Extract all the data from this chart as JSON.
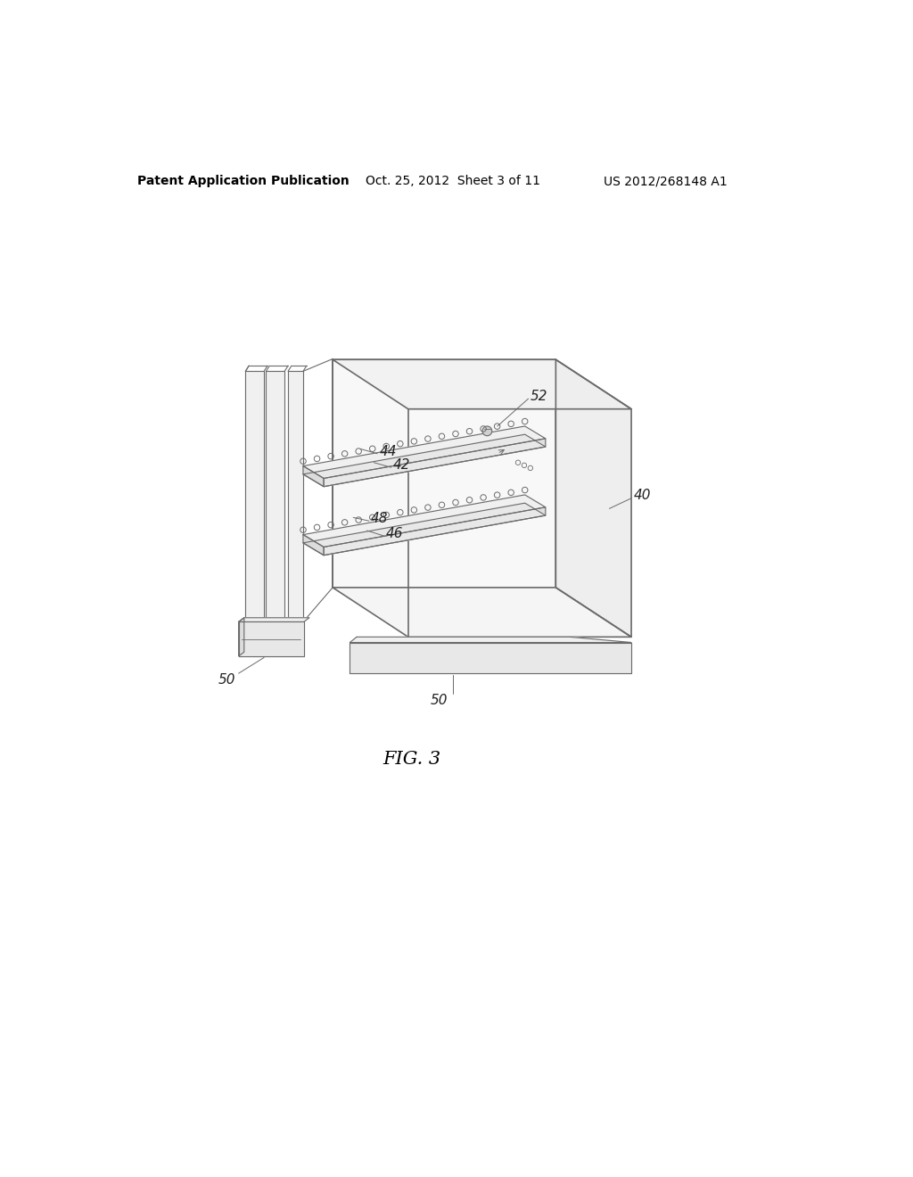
{
  "header_left": "Patent Application Publication",
  "header_center": "Oct. 25, 2012  Sheet 3 of 11",
  "header_right": "US 2012/268148 A1",
  "title": "FIG. 3",
  "bg_color": "#ffffff",
  "line_color": "#6a6a6a",
  "label_color": "#222222",
  "font_size_header": 10,
  "font_size_label": 11,
  "font_size_title": 15,
  "lw_main": 1.2,
  "lw_thin": 0.8
}
